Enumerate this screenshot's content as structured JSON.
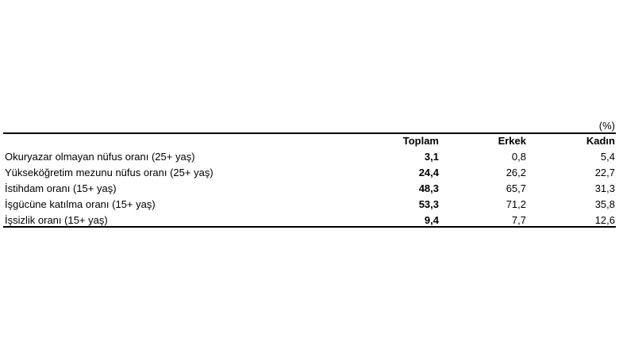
{
  "table": {
    "unit": "(%)",
    "header": [
      "Toplam",
      "Erkek",
      "Kadın"
    ],
    "rows": [
      [
        "Okuryazar olmayan nüfus oranı (25+ yaş)",
        "3,1",
        "0,8",
        "5,4"
      ],
      [
        "Yükseköğretim mezunu nüfus oranı (25+ yaş)",
        "24,4",
        "26,2",
        "22,7"
      ],
      [
        "İstihdam oranı (15+ yaş)",
        "48,3",
        "65,7",
        "31,3"
      ],
      [
        "İşgücüne katılma oranı (15+ yaş)",
        "53,3",
        "71,2",
        "35,8"
      ],
      [
        "İşsizlik oranı (15+ yaş)",
        "9,4",
        "7,7",
        "12,6"
      ]
    ]
  }
}
